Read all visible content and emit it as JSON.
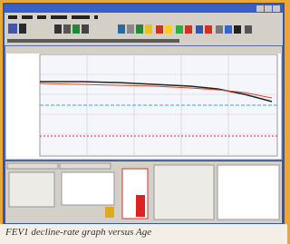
{
  "caption": "FEV1 decline-rate graph versus Age"
}
